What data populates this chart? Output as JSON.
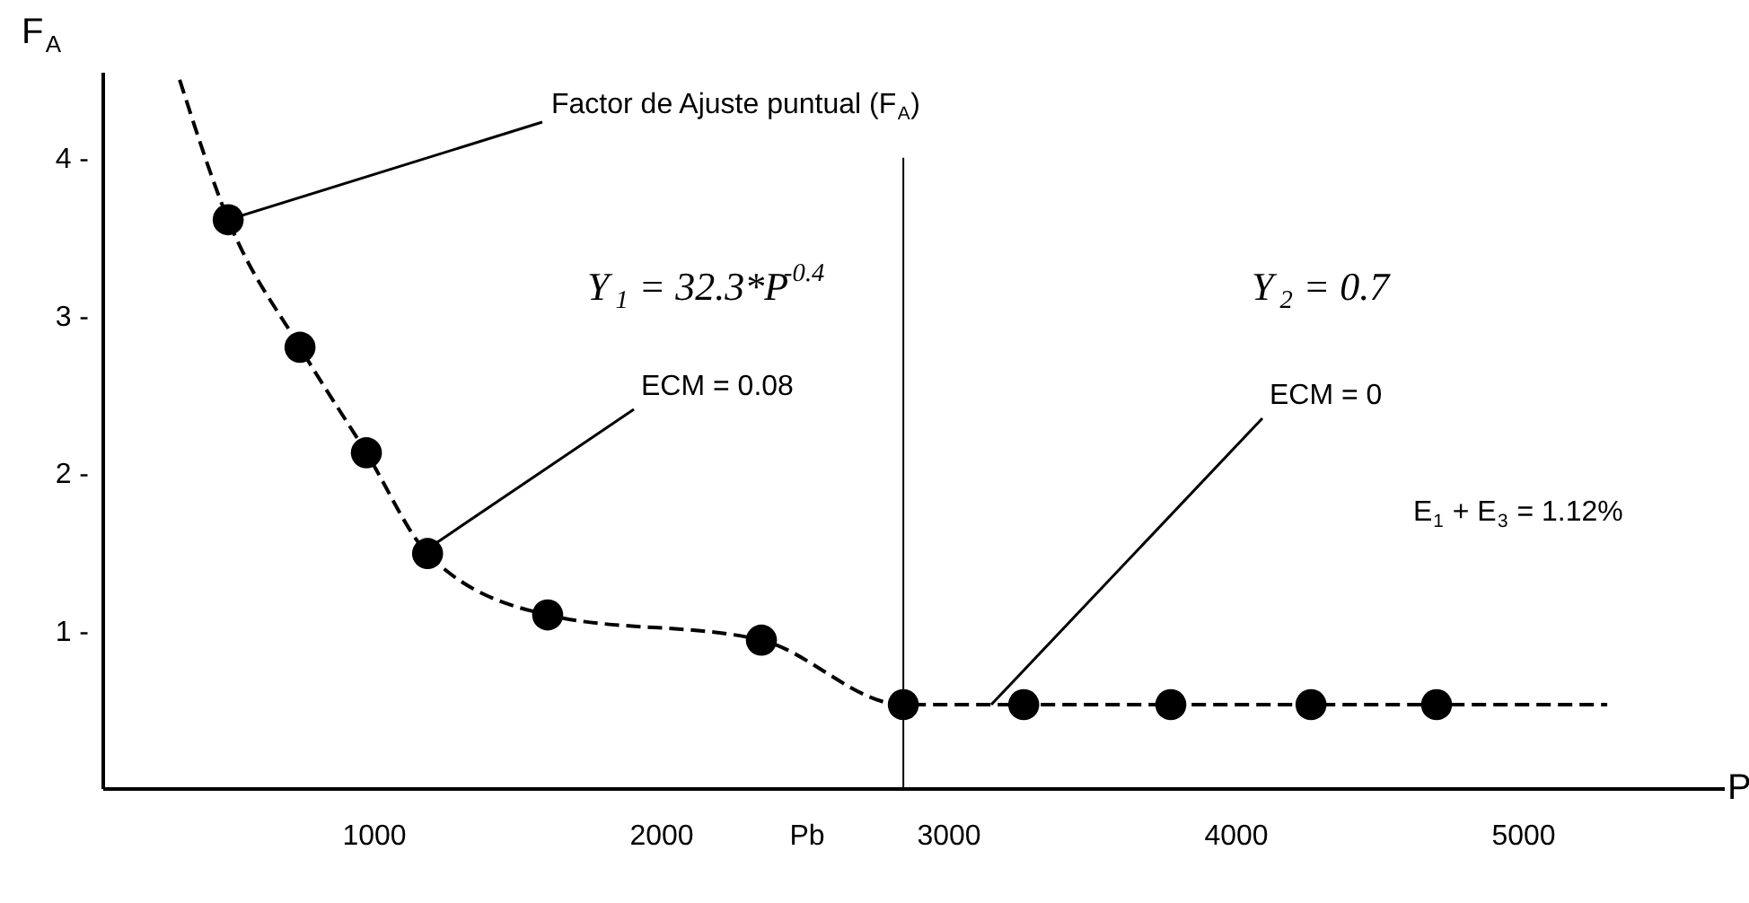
{
  "chart_data": {
    "type": "scatter",
    "xlabel": "P",
    "ylabel": "F$_{A}$",
    "x": [
      494,
      744,
      975,
      1188,
      1606,
      2350,
      2844,
      3263,
      3775,
      4263,
      4700
    ],
    "series": [
      {
        "color": "#000000",
        "marker": "circle",
        "values": [
          3.61,
          2.8,
          2.13,
          1.49,
          1.1,
          0.94,
          0.53,
          0.53,
          0.53,
          0.53,
          0.53
        ]
      },
      {
        "type": "line",
        "color": "#000000",
        "line_style": "dashed",
        "marker": "none",
        "x": [
          325,
          494,
          744,
          975,
          1188,
          1606,
          2350,
          2844,
          5294
        ],
        "values": [
          4.5,
          3.61,
          2.8,
          2.13,
          1.49,
          1.1,
          0.94,
          0.53,
          0.53
        ]
      }
    ],
    "xlim": [
      56,
      5700
    ],
    "ylim": [
      0,
      4.55
    ],
    "xticks": [
      1000,
      2000,
      {
        "value": 2506,
        "label": "Pb"
      },
      3000,
      4000,
      5000
    ],
    "yticks": [
      {
        "value": 1,
        "label": "1 -"
      },
      {
        "value": 2,
        "label": "2 -"
      },
      {
        "value": 3,
        "label": "3 -"
      },
      {
        "value": 4,
        "label": "4 -"
      }
    ],
    "ref_lines": [
      {
        "axis": "x",
        "value": 2844,
        "color": "#000000"
      }
    ],
    "annotations": [
      {
        "text": "Factor de Ajuste puntual (F$_{A}$)",
        "x": 494,
        "y": 3.61
      },
      "Y$_{1}$ = 32.3*P$^{-0.4}$",
      {
        "text": "ECM = 0.08",
        "x": 1188,
        "y": 1.52
      },
      "Y$_{2}$ = 0.7",
      {
        "text": "ECM = 0",
        "x": 3150,
        "y": 0.53
      },
      "E$_{1}$ + E$_{3}$ = 1.12%"
    ],
    "grid": false
  }
}
